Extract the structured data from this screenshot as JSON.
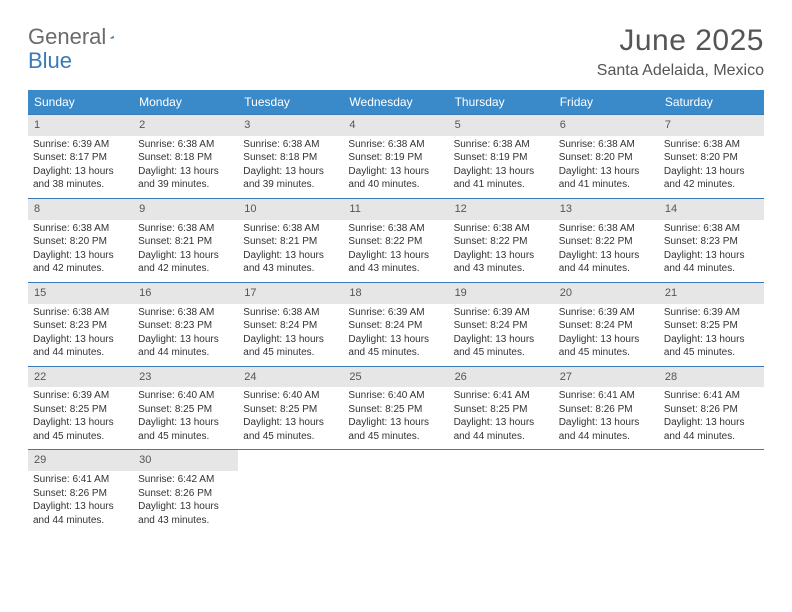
{
  "logo": {
    "word1": "General",
    "word2": "Blue"
  },
  "title": "June 2025",
  "location": "Santa Adelaida, Mexico",
  "colors": {
    "header_bg": "#3a8ac9",
    "header_text": "#ffffff",
    "daynum_bg": "#e6e6e6",
    "rule": "#3a7ab8",
    "text": "#333333",
    "logo_gray": "#6b6b6b",
    "logo_blue": "#3a7ab8"
  },
  "day_headers": [
    "Sunday",
    "Monday",
    "Tuesday",
    "Wednesday",
    "Thursday",
    "Friday",
    "Saturday"
  ],
  "weeks": [
    [
      {
        "n": "1",
        "sr": "6:39 AM",
        "ss": "8:17 PM",
        "dl": "13 hours and 38 minutes."
      },
      {
        "n": "2",
        "sr": "6:38 AM",
        "ss": "8:18 PM",
        "dl": "13 hours and 39 minutes."
      },
      {
        "n": "3",
        "sr": "6:38 AM",
        "ss": "8:18 PM",
        "dl": "13 hours and 39 minutes."
      },
      {
        "n": "4",
        "sr": "6:38 AM",
        "ss": "8:19 PM",
        "dl": "13 hours and 40 minutes."
      },
      {
        "n": "5",
        "sr": "6:38 AM",
        "ss": "8:19 PM",
        "dl": "13 hours and 41 minutes."
      },
      {
        "n": "6",
        "sr": "6:38 AM",
        "ss": "8:20 PM",
        "dl": "13 hours and 41 minutes."
      },
      {
        "n": "7",
        "sr": "6:38 AM",
        "ss": "8:20 PM",
        "dl": "13 hours and 42 minutes."
      }
    ],
    [
      {
        "n": "8",
        "sr": "6:38 AM",
        "ss": "8:20 PM",
        "dl": "13 hours and 42 minutes."
      },
      {
        "n": "9",
        "sr": "6:38 AM",
        "ss": "8:21 PM",
        "dl": "13 hours and 42 minutes."
      },
      {
        "n": "10",
        "sr": "6:38 AM",
        "ss": "8:21 PM",
        "dl": "13 hours and 43 minutes."
      },
      {
        "n": "11",
        "sr": "6:38 AM",
        "ss": "8:22 PM",
        "dl": "13 hours and 43 minutes."
      },
      {
        "n": "12",
        "sr": "6:38 AM",
        "ss": "8:22 PM",
        "dl": "13 hours and 43 minutes."
      },
      {
        "n": "13",
        "sr": "6:38 AM",
        "ss": "8:22 PM",
        "dl": "13 hours and 44 minutes."
      },
      {
        "n": "14",
        "sr": "6:38 AM",
        "ss": "8:23 PM",
        "dl": "13 hours and 44 minutes."
      }
    ],
    [
      {
        "n": "15",
        "sr": "6:38 AM",
        "ss": "8:23 PM",
        "dl": "13 hours and 44 minutes."
      },
      {
        "n": "16",
        "sr": "6:38 AM",
        "ss": "8:23 PM",
        "dl": "13 hours and 44 minutes."
      },
      {
        "n": "17",
        "sr": "6:38 AM",
        "ss": "8:24 PM",
        "dl": "13 hours and 45 minutes."
      },
      {
        "n": "18",
        "sr": "6:39 AM",
        "ss": "8:24 PM",
        "dl": "13 hours and 45 minutes."
      },
      {
        "n": "19",
        "sr": "6:39 AM",
        "ss": "8:24 PM",
        "dl": "13 hours and 45 minutes."
      },
      {
        "n": "20",
        "sr": "6:39 AM",
        "ss": "8:24 PM",
        "dl": "13 hours and 45 minutes."
      },
      {
        "n": "21",
        "sr": "6:39 AM",
        "ss": "8:25 PM",
        "dl": "13 hours and 45 minutes."
      }
    ],
    [
      {
        "n": "22",
        "sr": "6:39 AM",
        "ss": "8:25 PM",
        "dl": "13 hours and 45 minutes."
      },
      {
        "n": "23",
        "sr": "6:40 AM",
        "ss": "8:25 PM",
        "dl": "13 hours and 45 minutes."
      },
      {
        "n": "24",
        "sr": "6:40 AM",
        "ss": "8:25 PM",
        "dl": "13 hours and 45 minutes."
      },
      {
        "n": "25",
        "sr": "6:40 AM",
        "ss": "8:25 PM",
        "dl": "13 hours and 45 minutes."
      },
      {
        "n": "26",
        "sr": "6:41 AM",
        "ss": "8:25 PM",
        "dl": "13 hours and 44 minutes."
      },
      {
        "n": "27",
        "sr": "6:41 AM",
        "ss": "8:26 PM",
        "dl": "13 hours and 44 minutes."
      },
      {
        "n": "28",
        "sr": "6:41 AM",
        "ss": "8:26 PM",
        "dl": "13 hours and 44 minutes."
      }
    ],
    [
      {
        "n": "29",
        "sr": "6:41 AM",
        "ss": "8:26 PM",
        "dl": "13 hours and 44 minutes."
      },
      {
        "n": "30",
        "sr": "6:42 AM",
        "ss": "8:26 PM",
        "dl": "13 hours and 43 minutes."
      },
      null,
      null,
      null,
      null,
      null
    ]
  ],
  "labels": {
    "sunrise": "Sunrise: ",
    "sunset": "Sunset: ",
    "daylight": "Daylight: "
  }
}
